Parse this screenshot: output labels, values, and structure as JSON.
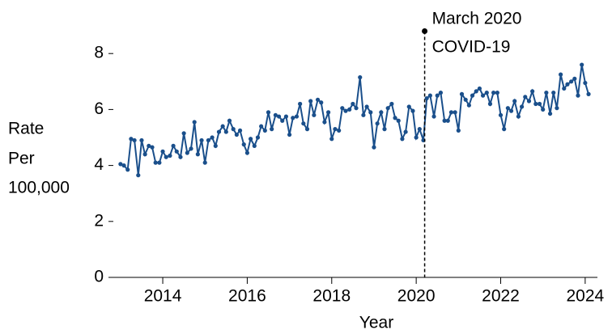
{
  "chart_data": {
    "type": "line",
    "xlabel": "Year",
    "ylabel": [
      "Rate",
      "Per",
      "100,000"
    ],
    "x": [
      2013,
      2013.08,
      2013.17,
      2013.25,
      2013.33,
      2013.42,
      2013.5,
      2013.58,
      2013.67,
      2013.75,
      2013.83,
      2013.92,
      2014,
      2014.08,
      2014.17,
      2014.25,
      2014.33,
      2014.42,
      2014.5,
      2014.58,
      2014.67,
      2014.75,
      2014.83,
      2014.92,
      2015,
      2015.08,
      2015.17,
      2015.25,
      2015.33,
      2015.42,
      2015.5,
      2015.58,
      2015.67,
      2015.75,
      2015.83,
      2015.92,
      2016,
      2016.08,
      2016.17,
      2016.25,
      2016.33,
      2016.42,
      2016.5,
      2016.58,
      2016.67,
      2016.75,
      2016.83,
      2016.92,
      2017,
      2017.08,
      2017.17,
      2017.25,
      2017.33,
      2017.42,
      2017.5,
      2017.58,
      2017.67,
      2017.75,
      2017.83,
      2017.92,
      2018,
      2018.08,
      2018.17,
      2018.25,
      2018.33,
      2018.42,
      2018.5,
      2018.58,
      2018.67,
      2018.75,
      2018.83,
      2018.92,
      2019,
      2019.08,
      2019.17,
      2019.25,
      2019.33,
      2019.42,
      2019.5,
      2019.58,
      2019.67,
      2019.75,
      2019.83,
      2019.92,
      2020,
      2020.08,
      2020.17,
      2020.25,
      2020.33,
      2020.42,
      2020.5,
      2020.58,
      2020.67,
      2020.75,
      2020.83,
      2020.92,
      2021,
      2021.08,
      2021.17,
      2021.25,
      2021.33,
      2021.42,
      2021.5,
      2021.58,
      2021.67,
      2021.75,
      2021.83,
      2021.92,
      2022,
      2022.08,
      2022.17,
      2022.25,
      2022.33,
      2022.42,
      2022.5,
      2022.58,
      2022.67,
      2022.75,
      2022.83,
      2022.92,
      2023,
      2023.08,
      2023.17,
      2023.25,
      2023.33,
      2023.42,
      2023.5,
      2023.58,
      2023.67,
      2023.75,
      2023.83,
      2023.92,
      2024,
      2024.08
    ],
    "series": [
      {
        "color": "#1a4f8b",
        "values": [
          4.05,
          4.0,
          3.85,
          4.95,
          4.9,
          3.65,
          4.9,
          4.4,
          4.7,
          4.65,
          4.1,
          4.1,
          4.5,
          4.3,
          4.35,
          4.7,
          4.5,
          4.3,
          5.15,
          4.45,
          4.6,
          5.55,
          4.4,
          4.9,
          4.1,
          4.9,
          5.0,
          4.7,
          5.2,
          5.4,
          5.2,
          5.6,
          5.3,
          5.1,
          5.25,
          4.75,
          4.45,
          4.95,
          4.7,
          5.0,
          5.4,
          5.25,
          5.9,
          5.3,
          5.8,
          5.75,
          5.6,
          5.75,
          5.1,
          5.7,
          5.75,
          6.2,
          5.5,
          5.3,
          6.3,
          5.8,
          6.35,
          6.25,
          5.55,
          5.9,
          4.95,
          5.3,
          5.25,
          6.05,
          5.95,
          6.0,
          6.2,
          6.05,
          7.15,
          5.8,
          6.1,
          5.9,
          4.65,
          5.5,
          5.9,
          5.3,
          6.05,
          6.2,
          5.7,
          5.6,
          4.95,
          5.2,
          6.1,
          5.95,
          5.0,
          5.3,
          4.9,
          6.4,
          6.5,
          5.75,
          6.5,
          6.6,
          5.6,
          5.6,
          5.9,
          5.9,
          5.25,
          6.55,
          6.35,
          6.15,
          6.5,
          6.65,
          6.75,
          6.5,
          6.6,
          6.2,
          6.6,
          6.6,
          5.8,
          5.3,
          6.05,
          5.95,
          6.3,
          5.75,
          6.1,
          6.45,
          6.3,
          6.65,
          6.2,
          6.2,
          6.0,
          6.6,
          5.85,
          6.6,
          6.05,
          7.25,
          6.75,
          6.9,
          7.0,
          7.1,
          6.5,
          7.6,
          6.95,
          6.55
        ]
      }
    ],
    "xlim": [
      2012.83,
      2024.29
    ],
    "xticks": [
      2014,
      2016,
      2018,
      2020,
      2022,
      2024
    ],
    "ylim": [
      0,
      9
    ],
    "yticks": [
      0,
      2,
      4,
      6,
      8
    ],
    "annotation": {
      "x": 2020.2,
      "y": 8.8,
      "label": [
        "March 2020",
        "COVID-19"
      ]
    }
  }
}
